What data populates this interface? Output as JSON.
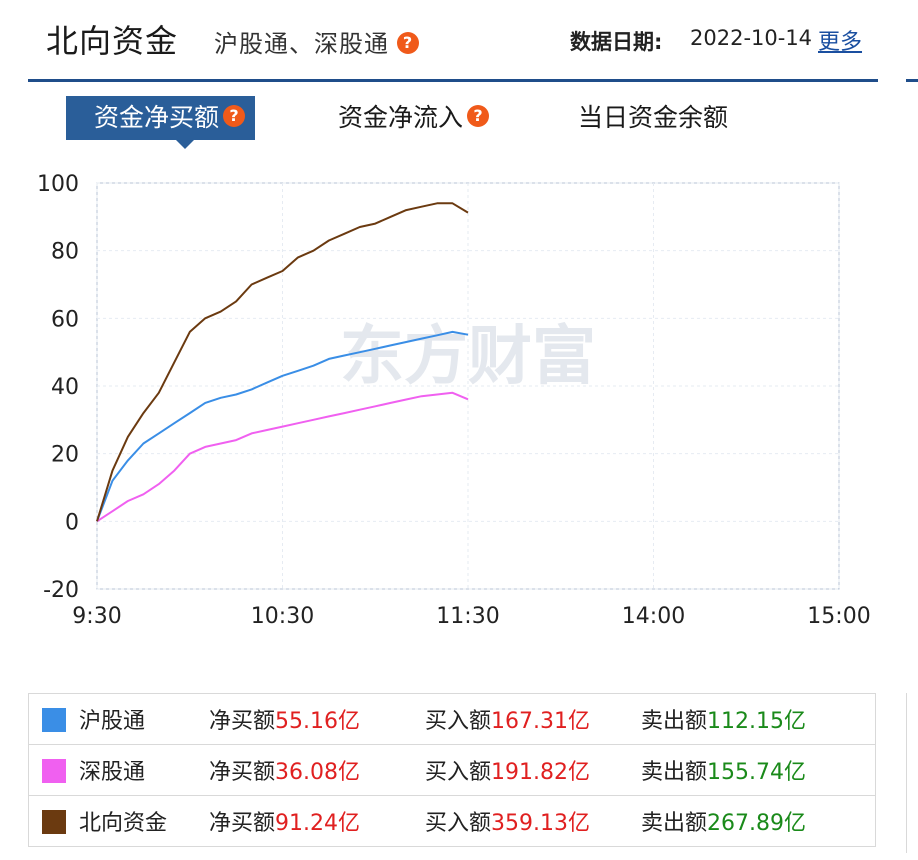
{
  "header": {
    "title": "北向资金",
    "subtitle": "沪股通、深股通",
    "help_glyph": "?",
    "date_label": "数据日期:",
    "date_value": "2022-10-14",
    "more_link": "更多"
  },
  "tabs": [
    {
      "label": "资金净买额",
      "active": true
    },
    {
      "label": "资金净流入",
      "active": false
    },
    {
      "label": "当日资金余额",
      "active": false
    }
  ],
  "watermark": "东方财富",
  "chart_data": {
    "type": "line",
    "x_ticks": [
      "9:30",
      "10:30",
      "11:30",
      "14:00",
      "15:00"
    ],
    "y_ticks": [
      "100",
      "80",
      "60",
      "40",
      "20",
      "0",
      "-20"
    ],
    "ylim": [
      -20,
      100
    ],
    "x_domain": [
      "9:30",
      "15:00"
    ],
    "grid": true,
    "series": [
      {
        "name": "沪股通",
        "color": "#3a8ee6",
        "x": [
          "9:30",
          "9:35",
          "9:40",
          "9:45",
          "9:50",
          "9:55",
          "10:00",
          "10:05",
          "10:10",
          "10:15",
          "10:20",
          "10:25",
          "10:30",
          "10:35",
          "10:40",
          "10:45",
          "10:50",
          "10:55",
          "11:00",
          "11:05",
          "11:10",
          "11:15",
          "11:20",
          "11:25",
          "11:30"
        ],
        "values": [
          0,
          12,
          18,
          23,
          26,
          29,
          32,
          35,
          36.5,
          37.5,
          39,
          41,
          43,
          44.5,
          46,
          48,
          49,
          50,
          51,
          52,
          53,
          54,
          55,
          56,
          55.16
        ]
      },
      {
        "name": "深股通",
        "color": "#f060f0",
        "x": [
          "9:30",
          "9:35",
          "9:40",
          "9:45",
          "9:50",
          "9:55",
          "10:00",
          "10:05",
          "10:10",
          "10:15",
          "10:20",
          "10:25",
          "10:30",
          "10:35",
          "10:40",
          "10:45",
          "10:50",
          "10:55",
          "11:00",
          "11:05",
          "11:10",
          "11:15",
          "11:20",
          "11:25",
          "11:30"
        ],
        "values": [
          0,
          3,
          6,
          8,
          11,
          15,
          20,
          22,
          23,
          24,
          26,
          27,
          28,
          29,
          30,
          31,
          32,
          33,
          34,
          35,
          36,
          37,
          37.5,
          38,
          36.08
        ]
      },
      {
        "name": "北向资金",
        "color": "#6b3a10",
        "x": [
          "9:30",
          "9:35",
          "9:40",
          "9:45",
          "9:50",
          "9:55",
          "10:00",
          "10:05",
          "10:10",
          "10:15",
          "10:20",
          "10:25",
          "10:30",
          "10:35",
          "10:40",
          "10:45",
          "10:50",
          "10:55",
          "11:00",
          "11:05",
          "11:10",
          "11:15",
          "11:20",
          "11:25",
          "11:30"
        ],
        "values": [
          0,
          15,
          25,
          32,
          38,
          47,
          56,
          60,
          62,
          65,
          70,
          72,
          74,
          78,
          80,
          83,
          85,
          87,
          88,
          90,
          92,
          93,
          94,
          94,
          91.24
        ]
      }
    ]
  },
  "legend": [
    {
      "name": "沪股通",
      "color": "#3a8ee6",
      "net_label": "净买额",
      "net_value": "55.16亿",
      "buy_label": "买入额",
      "buy_value": "167.31亿",
      "sell_label": "卖出额",
      "sell_value": "112.15亿"
    },
    {
      "name": "深股通",
      "color": "#f060f0",
      "net_label": "净买额",
      "net_value": "36.08亿",
      "buy_label": "买入额",
      "buy_value": "191.82亿",
      "sell_label": "卖出额",
      "sell_value": "155.74亿"
    },
    {
      "name": "北向资金",
      "color": "#6b3a10",
      "net_label": "净买额",
      "net_value": "91.24亿",
      "buy_label": "买入额",
      "buy_value": "359.13亿",
      "sell_label": "卖出额",
      "sell_value": "267.89亿"
    }
  ]
}
